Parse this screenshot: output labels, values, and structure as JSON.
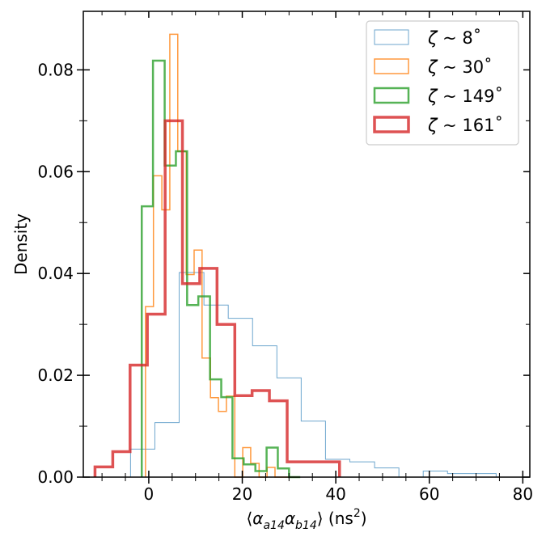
{
  "chart_data": {
    "type": "histogram",
    "xlabel": "⟨α_a14 α_b14⟩ (ns²)",
    "ylabel": "Density",
    "xlim": [
      -14,
      81.5
    ],
    "ylim": [
      0,
      0.0915
    ],
    "xticks": [
      0,
      20,
      40,
      60,
      80
    ],
    "xtick_labels": [
      "0",
      "20",
      "40",
      "60",
      "80"
    ],
    "yticks": [
      0.0,
      0.02,
      0.04,
      0.06,
      0.08
    ],
    "ytick_labels": [
      "0.00",
      "0.02",
      "0.04",
      "0.06",
      "0.08"
    ],
    "legend_position": "upper right",
    "series": [
      {
        "name": "ζ ~ 8°",
        "legend_label": "ζ ~ 8˚",
        "color": "#1f77b4",
        "width": 1,
        "alpha": 0.65,
        "edges": [
          -3.9,
          1.3,
          6.5,
          11.8,
          17.0,
          22.2,
          27.4,
          32.6,
          37.8,
          43.0,
          48.3,
          53.5,
          58.7,
          63.9,
          69.1,
          74.3
        ],
        "values": [
          0.0055,
          0.0107,
          0.0402,
          0.0338,
          0.0312,
          0.0258,
          0.0195,
          0.011,
          0.0035,
          0.003,
          0.0018,
          0.0,
          0.0012,
          0.0007,
          0.0007
        ]
      },
      {
        "name": "ζ ~ 30°",
        "legend_label": "ζ ~ 30˚",
        "color": "#ff7f0e",
        "width": 1.5,
        "alpha": 0.8,
        "edges": [
          -0.7,
          1.0,
          2.8,
          4.5,
          6.2,
          8.0,
          9.7,
          11.4,
          13.2,
          14.9,
          16.6,
          18.4,
          20.1,
          21.8,
          23.6,
          25.3,
          27.0,
          28.8,
          30.5,
          32.2
        ],
        "values": [
          0.0335,
          0.0592,
          0.0525,
          0.087,
          0.064,
          0.0398,
          0.0446,
          0.0234,
          0.0156,
          0.0129,
          0.0159,
          0.0,
          0.0058,
          0.0027,
          0.0,
          0.0019,
          0.0,
          0.0,
          0.0
        ]
      },
      {
        "name": "ζ ~ 149°",
        "legend_label": "ζ ~ 149˚",
        "color": "#2ca02c",
        "width": 2.5,
        "alpha": 0.8,
        "edges": [
          -1.5,
          0.9,
          3.4,
          5.8,
          8.2,
          10.6,
          13.1,
          15.5,
          17.9,
          20.3,
          22.8,
          25.2,
          27.6,
          30.0,
          32.4
        ],
        "values": [
          0.0532,
          0.0818,
          0.0612,
          0.064,
          0.0338,
          0.0355,
          0.0192,
          0.0157,
          0.0037,
          0.0025,
          0.0012,
          0.0058,
          0.0017,
          0.0
        ]
      },
      {
        "name": "ζ ~ 161°",
        "legend_label": "ζ ~ 161˚",
        "color": "#d62728",
        "width": 3.5,
        "alpha": 0.8,
        "edges": [
          -11.5,
          -7.7,
          -4.0,
          -0.3,
          3.5,
          7.2,
          10.9,
          14.6,
          18.4,
          22.1,
          25.8,
          29.6,
          33.3,
          37.0,
          40.8
        ],
        "values": [
          0.002,
          0.005,
          0.022,
          0.032,
          0.07,
          0.038,
          0.041,
          0.03,
          0.016,
          0.017,
          0.015,
          0.003,
          0.003,
          0.003
        ]
      }
    ]
  }
}
